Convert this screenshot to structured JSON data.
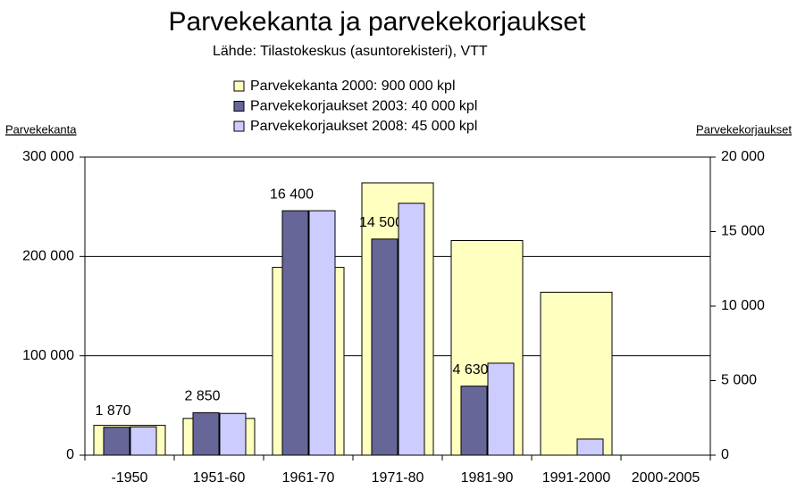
{
  "chart_data": {
    "type": "bar",
    "title": "Parvekekanta ja parvekekorjaukset",
    "subtitle": "Lähde: Tilastokeskus (asuntorekisteri), VTT",
    "y_label": "Parvekekanta",
    "y2_label": "Parvekekorjaukset",
    "categories": [
      "-1950",
      "1951-60",
      "1961-70",
      "1971-80",
      "1981-90",
      "1991-2000",
      "2000-2005"
    ],
    "series": [
      {
        "name": "Parvekekanta 2000: 900 000 kpl",
        "color": "#ffffc0",
        "values": [
          30000,
          37000,
          189000,
          274000,
          216000,
          164000,
          null
        ]
      },
      {
        "name": "Parvekekorjaukset 2003: 40 000 kpl",
        "color": "#666699",
        "axis": "y2",
        "values": [
          1870,
          2850,
          16400,
          14500,
          4630,
          null,
          null
        ],
        "value_labels": [
          "1 870",
          "2 850",
          "16 400",
          "14 500",
          "4 630",
          null,
          null
        ]
      },
      {
        "name": "Parvekekorjaukset 2008: 45 000 kpl",
        "color": "#ccccff",
        "axis": "y2",
        "values": [
          1900,
          2800,
          16400,
          16900,
          6170,
          1080,
          null
        ]
      }
    ],
    "ylim": [
      0,
      300000
    ],
    "yticks": [
      0,
      {
        "value": 100000,
        "label": "100 000"
      },
      {
        "value": 200000,
        "label": "200 000"
      },
      {
        "value": 300000,
        "label": "300 000"
      }
    ],
    "y2lim": [
      0,
      20000
    ],
    "y2ticks": [
      0,
      {
        "value": 5000,
        "label": "5 000"
      },
      {
        "value": 10000,
        "label": "10 000"
      },
      {
        "value": 15000,
        "label": "15 000"
      },
      {
        "value": 20000,
        "label": "20 000"
      }
    ],
    "grid": true
  }
}
